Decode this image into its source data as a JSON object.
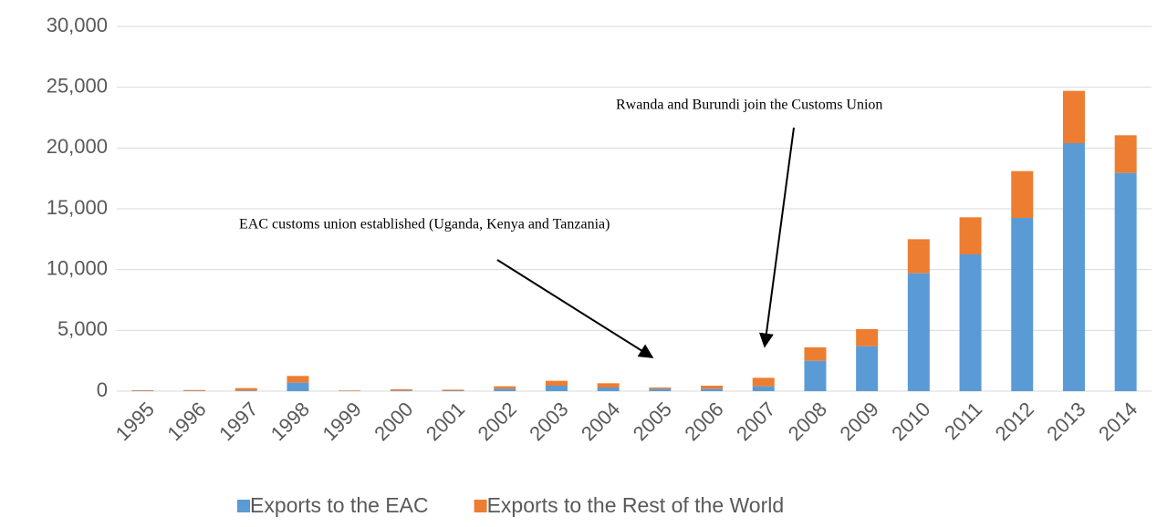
{
  "chart_data": {
    "type": "stacked_bar",
    "categories": [
      "1995",
      "1996",
      "1997",
      "1998",
      "1999",
      "2000",
      "2001",
      "2002",
      "2003",
      "2004",
      "2005",
      "2006",
      "2007",
      "2008",
      "2009",
      "2010",
      "2011",
      "2012",
      "2013",
      "2014"
    ],
    "series": [
      {
        "name": "Exports to the EAC",
        "color": "#5b9bd5",
        "values": [
          30,
          30,
          50,
          700,
          20,
          50,
          40,
          200,
          450,
          300,
          200,
          200,
          400,
          2500,
          3700,
          9700,
          11250,
          14250,
          20400,
          17950
        ]
      },
      {
        "name": "Exports to the Rest of the World",
        "color": "#ed7d31",
        "values": [
          50,
          60,
          200,
          550,
          40,
          100,
          80,
          200,
          400,
          350,
          100,
          250,
          700,
          1100,
          1400,
          2800,
          3050,
          3850,
          4300,
          3100
        ]
      }
    ],
    "ylim": [
      0,
      30000
    ],
    "yticks": [
      0,
      {
        "value": 5000,
        "label": "5,000"
      },
      {
        "value": 10000,
        "label": "10,000"
      },
      {
        "value": 15000,
        "label": "15,000"
      },
      {
        "value": 20000,
        "label": "20,000"
      },
      {
        "value": 25000,
        "label": "25,000"
      },
      {
        "value": 30000,
        "label": "30,000"
      }
    ],
    "grid": true,
    "legend": "bottom",
    "annotations": [
      "EAC customs union established (Uganda, Kenya and Tanzania)",
      "Rwanda and Burundi join the Customs Union"
    ]
  }
}
